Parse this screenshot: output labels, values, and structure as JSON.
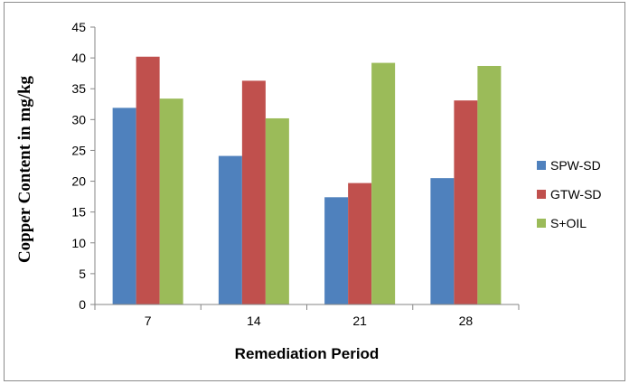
{
  "chart_data": {
    "type": "bar",
    "title": "",
    "xlabel": "Remediation Period",
    "ylabel": "Copper Content in mg/kg",
    "categories": [
      "7",
      "14",
      "21",
      "28"
    ],
    "ylim": [
      0,
      45
    ],
    "yticks": [
      0,
      5,
      10,
      15,
      20,
      25,
      30,
      35,
      40,
      45
    ],
    "grid": false,
    "legend_position": "right",
    "series": [
      {
        "name": "SPW-SD",
        "color": "#4f81bd",
        "values": [
          31.9,
          24.1,
          17.4,
          20.5
        ]
      },
      {
        "name": "GTW-SD",
        "color": "#c0504d",
        "values": [
          40.2,
          36.3,
          19.7,
          33.1
        ]
      },
      {
        "name": "S+OIL",
        "color": "#9bbb59",
        "values": [
          33.4,
          30.2,
          39.2,
          38.7
        ]
      }
    ]
  }
}
